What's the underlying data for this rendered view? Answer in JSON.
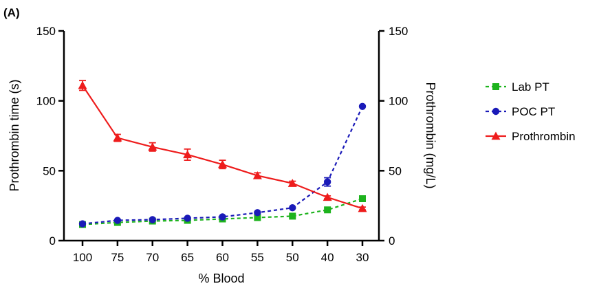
{
  "chart_data": {
    "type": "line",
    "panel_label": "(A)",
    "xlabel": "% Blood",
    "categories": [
      "100",
      "75",
      "70",
      "65",
      "60",
      "55",
      "50",
      "40",
      "30"
    ],
    "y_left": {
      "label": "Prothrombin time (s)",
      "ylim": [
        0,
        150
      ],
      "ticks": [
        "0",
        "50",
        "100",
        "150"
      ]
    },
    "y_right": {
      "label": "Prothrombin (mg/L)",
      "ylim": [
        0,
        150
      ],
      "ticks": [
        "0",
        "50",
        "100",
        "150"
      ]
    },
    "grid": false,
    "legend_position": "right",
    "series": [
      {
        "name": "Lab PT",
        "axis": "left",
        "color": "#1db31d",
        "marker": "square",
        "line_style": "dashed",
        "values": [
          11.5,
          13,
          14,
          14.5,
          15.5,
          16.5,
          17.5,
          22,
          30
        ],
        "errors": [
          0,
          0,
          0,
          0,
          0,
          0,
          0,
          0,
          0
        ]
      },
      {
        "name": "POC PT",
        "axis": "left",
        "color": "#1a1ab8",
        "marker": "circle",
        "line_style": "dashed",
        "values": [
          12,
          14.5,
          15,
          16,
          17,
          20,
          23.5,
          42,
          96
        ],
        "errors": [
          0,
          0,
          0,
          0,
          0,
          0,
          0,
          3,
          0
        ]
      },
      {
        "name": "Prothrombin",
        "axis": "right",
        "color": "#ee1c1c",
        "marker": "triangle",
        "line_style": "solid",
        "values": [
          111,
          73.5,
          67,
          61.5,
          54.5,
          46.5,
          41,
          31,
          23
        ],
        "errors": [
          3.5,
          2.5,
          3,
          4,
          3,
          2,
          1.5,
          1,
          1
        ]
      }
    ]
  }
}
